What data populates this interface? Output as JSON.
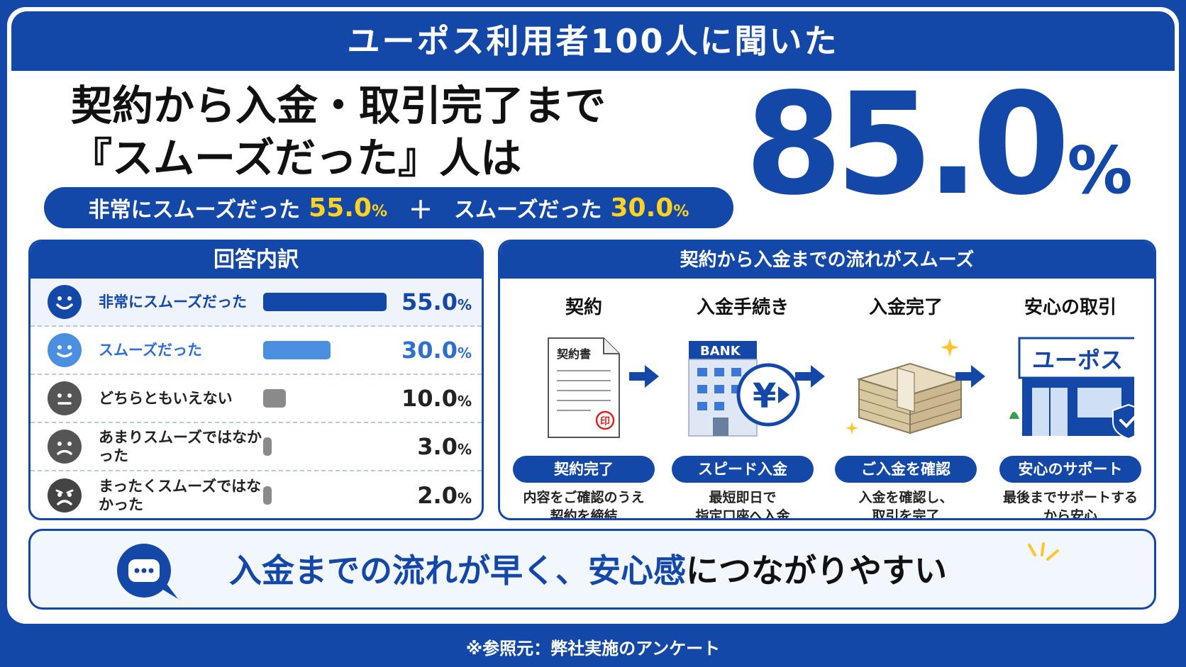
{
  "banner": "ユーポス利用者100人に聞いた",
  "headline": {
    "line1": "契約から入金・取引完了まで",
    "line2": "『スムーズだった』人は"
  },
  "summary": {
    "item1_label": "非常にスムーズだった",
    "item1_value": "55.0",
    "item1_unit": "%",
    "plus": "＋",
    "item2_label": "スムーズだった",
    "item2_value": "30.0",
    "item2_unit": "%"
  },
  "big_value": {
    "number": "85.0",
    "unit": "%"
  },
  "breakdown": {
    "title": "回答内訳",
    "rows": [
      {
        "label": "非常にスムーズだった",
        "value": "55.0",
        "unit": "%",
        "pct": 55.0
      },
      {
        "label": "スムーズだった",
        "value": "30.0",
        "unit": "%",
        "pct": 30.0
      },
      {
        "label": "どちらともいえない",
        "value": "10.0",
        "unit": "%",
        "pct": 10.0
      },
      {
        "label": "あまりスムーズではなかった",
        "value": "3.0",
        "unit": "%",
        "pct": 3.0
      },
      {
        "label": "まったくスムーズではなかった",
        "value": "2.0",
        "unit": "%",
        "pct": 2.0
      }
    ]
  },
  "flow": {
    "title": "契約から入金までの流れがスムーズ",
    "steps": [
      {
        "title": "契約",
        "badge": "契約完了",
        "desc1": "内容をご確認のうえ",
        "desc2": "契約を締結",
        "doc_label": "契約書",
        "seal": "印"
      },
      {
        "title": "入金手続き",
        "badge": "スピード入金",
        "desc1": "最短即日で",
        "desc2": "指定口座へ入金",
        "bank_label": "BANK",
        "yen": "¥"
      },
      {
        "title": "入金完了",
        "badge": "ご入金を確認",
        "desc1": "入金を確認し、",
        "desc2": "取引を完了"
      },
      {
        "title": "安心の取引",
        "badge": "安心のサポート",
        "desc1": "最後までサポートする",
        "desc2": "から安心",
        "shop_sign": "ユーポス"
      }
    ]
  },
  "message": {
    "part1": "入金までの流れが早く、",
    "part2": "安心感",
    "part3": "につながりやすい"
  },
  "footer": "※参照元：弊社実施のアンケート",
  "colors": {
    "primary": "#1448a8",
    "accent_yellow": "#ffd21f",
    "light_blue": "#4a8fe0",
    "gray": "#8a8a8a"
  },
  "icons": [
    "very-happy-face-icon",
    "happy-face-icon",
    "neutral-face-icon",
    "sad-face-icon",
    "very-sad-face-icon",
    "arrow-right-icon",
    "speech-bubble-icon",
    "sparkle-icon",
    "shield-check-icon"
  ]
}
